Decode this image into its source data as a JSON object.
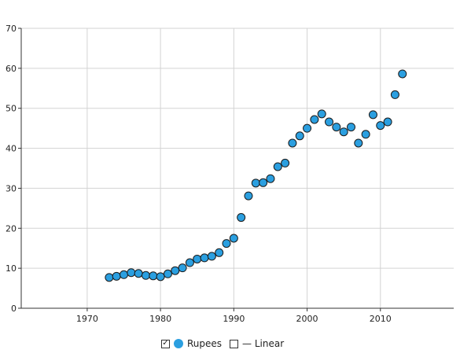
{
  "chart_data": {
    "type": "scatter",
    "xlim": [
      1961,
      2020
    ],
    "ylim": [
      0,
      70
    ],
    "xticks": [
      1970,
      1980,
      1990,
      2000,
      2010
    ],
    "yticks": [
      0,
      10,
      20,
      30,
      40,
      50,
      60,
      70
    ],
    "grid": true,
    "legend_position": "bottom",
    "series": [
      {
        "name": "Rupees",
        "color": "#2b9fe0",
        "x": [
          1973,
          1974,
          1975,
          1976,
          1977,
          1978,
          1979,
          1980,
          1981,
          1982,
          1983,
          1984,
          1985,
          1986,
          1987,
          1988,
          1989,
          1990,
          1991,
          1992,
          1993,
          1994,
          1995,
          1996,
          1997,
          1998,
          1999,
          2000,
          2001,
          2002,
          2003,
          2004,
          2005,
          2006,
          2007,
          2008,
          2009,
          2010,
          2011,
          2012,
          2013
        ],
        "y": [
          7.7,
          8.0,
          8.4,
          8.9,
          8.7,
          8.2,
          8.1,
          7.9,
          8.6,
          9.4,
          10.1,
          11.4,
          12.3,
          12.6,
          13.0,
          13.9,
          16.2,
          17.5,
          22.7,
          28.1,
          31.3,
          31.4,
          32.4,
          35.4,
          36.3,
          41.3,
          43.1,
          45.0,
          47.2,
          48.6,
          46.6,
          45.3,
          44.1,
          45.3,
          41.3,
          43.5,
          48.4,
          45.7,
          46.6,
          53.4,
          58.6
        ]
      }
    ],
    "legend": {
      "entries": [
        {
          "label": "Rupees",
          "checked": true,
          "marker": "circle"
        },
        {
          "label": "— Linear",
          "checked": false,
          "marker": "none"
        }
      ]
    },
    "colors": {
      "grid": "#d3d3d3",
      "axis": "#333333",
      "point_stroke": "#1a1a1a"
    }
  }
}
